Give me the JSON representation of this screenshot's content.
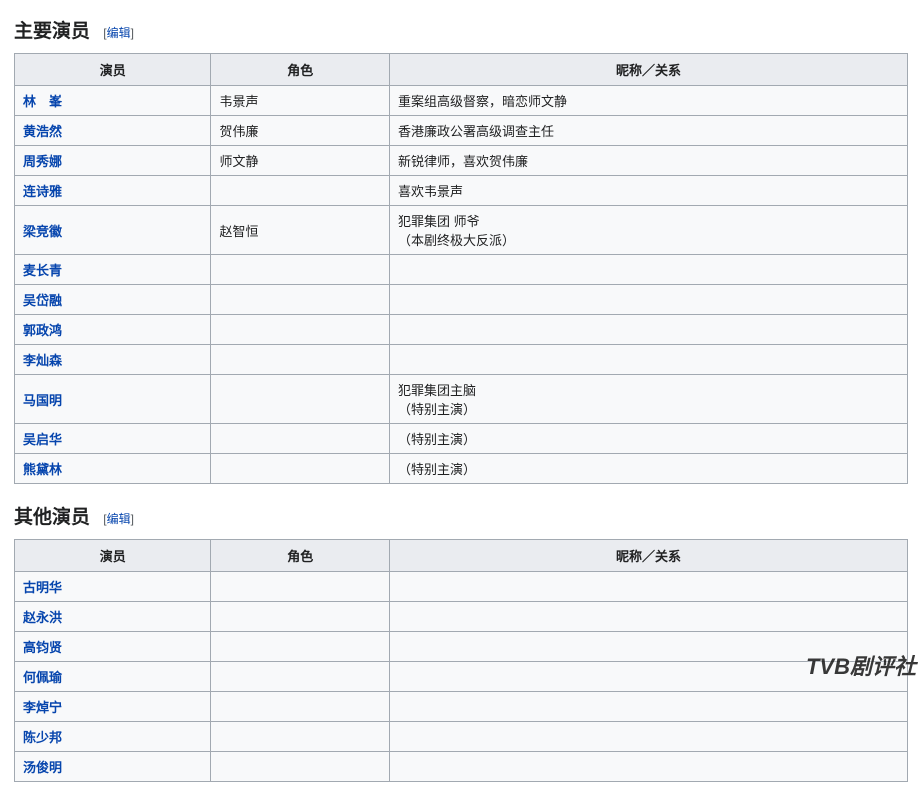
{
  "section1": {
    "heading": "主要演员",
    "edit_label": "编辑",
    "headers": {
      "actor": "演员",
      "role": "角色",
      "relation": "昵称／关系"
    },
    "rows": [
      {
        "actor": "林　峯",
        "role": "韦景声",
        "relation": "重案组高级督察，暗恋师文静"
      },
      {
        "actor": "黄浩然",
        "role": "贺伟廉",
        "relation": "香港廉政公署高级调查主任"
      },
      {
        "actor": "周秀娜",
        "role": "师文静",
        "relation": "新锐律师，喜欢贺伟廉"
      },
      {
        "actor": "连诗雅",
        "role": "",
        "relation": "喜欢韦景声"
      },
      {
        "actor": "梁竞徽",
        "role": "赵智恒",
        "relation": "犯罪集团 师爷<br>（本剧终极大反派）"
      },
      {
        "actor": "麦长青",
        "role": "",
        "relation": ""
      },
      {
        "actor": "吴岱融",
        "role": "",
        "relation": ""
      },
      {
        "actor": "郭政鸿",
        "role": "",
        "relation": ""
      },
      {
        "actor": "李灿森",
        "role": "",
        "relation": ""
      },
      {
        "actor": "马国明",
        "role": "",
        "relation": "犯罪集团主脑<br>（特别主演）"
      },
      {
        "actor": "吴启华",
        "role": "",
        "relation": "（特别主演）"
      },
      {
        "actor": "熊黛林",
        "role": "",
        "relation": "（特别主演）"
      }
    ]
  },
  "section2": {
    "heading": "其他演员",
    "edit_label": "编辑",
    "headers": {
      "actor": "演员",
      "role": "角色",
      "relation": "昵称／关系"
    },
    "rows": [
      {
        "actor": "古明华",
        "role": "",
        "relation": ""
      },
      {
        "actor": "赵永洪",
        "role": "",
        "relation": ""
      },
      {
        "actor": "高钧贤",
        "role": "",
        "relation": ""
      },
      {
        "actor": "何佩瑜",
        "role": "",
        "relation": ""
      },
      {
        "actor": "李焯宁",
        "role": "",
        "relation": ""
      },
      {
        "actor": "陈少邦",
        "role": "",
        "relation": ""
      },
      {
        "actor": "汤俊明",
        "role": "",
        "relation": ""
      }
    ]
  },
  "watermark": "TVB剧评社"
}
